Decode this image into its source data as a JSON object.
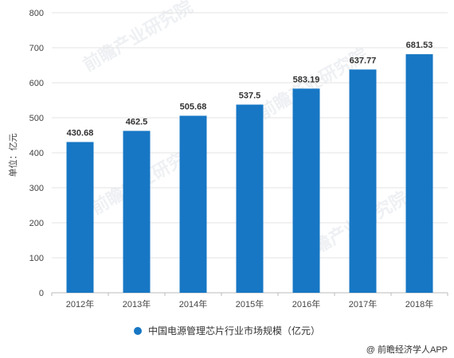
{
  "chart_data": {
    "type": "bar",
    "title": "",
    "xlabel": "",
    "ylabel": "单位：亿元",
    "ylim": [
      0,
      800
    ],
    "yticks": [
      0,
      100,
      200,
      300,
      400,
      500,
      600,
      700,
      800
    ],
    "categories": [
      "2012年",
      "2013年",
      "2014年",
      "2015年",
      "2016年",
      "2017年",
      "2018年"
    ],
    "series": [
      {
        "name": "中国电源管理芯片行业市场规模（亿元）",
        "values": [
          430.68,
          462.5,
          505.68,
          537.5,
          583.19,
          637.77,
          681.53
        ],
        "labels": [
          "430.68",
          "462.5",
          "505.68",
          "537.5",
          "583.19",
          "637.77",
          "681.53"
        ],
        "color": "#1777c4"
      }
    ],
    "grid": true,
    "legend_position": "bottom"
  },
  "source": "@ 前瞻经济学人APP",
  "watermark": "前瞻产业研究院"
}
